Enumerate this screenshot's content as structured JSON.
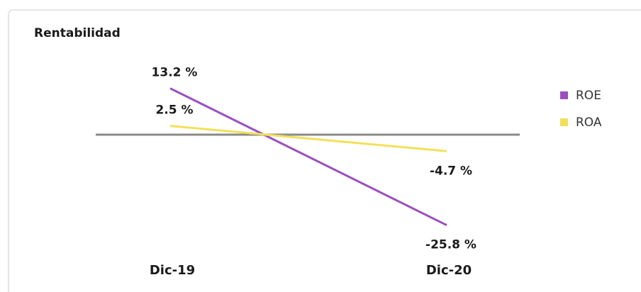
{
  "chart_data": {
    "type": "line",
    "title": "Rentabilidad",
    "categories": [
      "Dic-19",
      "Dic-20"
    ],
    "series": [
      {
        "name": "ROE",
        "color": "#9b4fc0",
        "values": [
          13.2,
          -25.8
        ],
        "value_labels": [
          "13.2 %",
          "-25.8 %"
        ]
      },
      {
        "name": "ROA",
        "color": "#f2e05a",
        "values": [
          2.5,
          -4.7
        ],
        "value_labels": [
          "2.5 %",
          "-4.7 %"
        ]
      }
    ],
    "legend": "right"
  }
}
